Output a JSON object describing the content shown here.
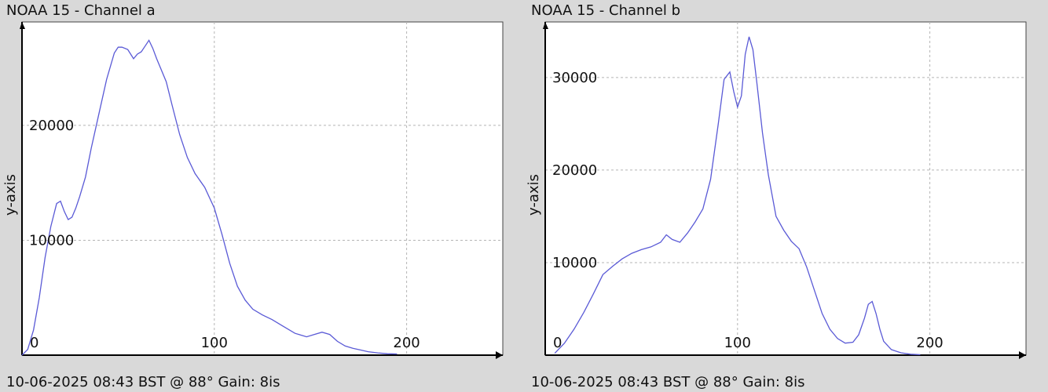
{
  "chart_data": [
    {
      "type": "line",
      "title": "NOAA 15 - Channel a",
      "footer": "10-06-2025 08:43 BST @ 88° Gain: 8is",
      "ylabel": "y-axis",
      "xlabel": "",
      "xlim": [
        0,
        250
      ],
      "ylim": [
        0,
        29000
      ],
      "x_ticks": [
        0,
        100,
        200
      ],
      "y_ticks": [
        10000,
        20000
      ],
      "grid": true,
      "series": [
        {
          "x": [
            0,
            3,
            6,
            9,
            12,
            15,
            18,
            20,
            22,
            24,
            26,
            28,
            30,
            33,
            36,
            40,
            44,
            48,
            50,
            52,
            55,
            58,
            60,
            62,
            64,
            66,
            68,
            70,
            72,
            75,
            78,
            82,
            86,
            90,
            95,
            100,
            104,
            108,
            112,
            116,
            120,
            125,
            130,
            136,
            142,
            148,
            152,
            156,
            160,
            164,
            168,
            172,
            176,
            180,
            185,
            190,
            195
          ],
          "values": [
            0,
            500,
            2200,
            5000,
            8500,
            11200,
            13200,
            13400,
            12500,
            11800,
            12000,
            12800,
            13800,
            15500,
            18000,
            21000,
            24000,
            26300,
            26800,
            26800,
            26600,
            25800,
            26200,
            26400,
            26900,
            27400,
            26700,
            25800,
            25000,
            23800,
            21800,
            19200,
            17200,
            15800,
            14600,
            12800,
            10500,
            8000,
            6000,
            4800,
            4000,
            3500,
            3100,
            2500,
            1900,
            1600,
            1800,
            2000,
            1800,
            1200,
            800,
            600,
            450,
            300,
            200,
            120,
            100
          ]
        }
      ]
    },
    {
      "type": "line",
      "title": "NOAA 15 - Channel b",
      "footer": "10-06-2025 08:43 BST @ 88° Gain: 8is",
      "ylabel": "y-axis",
      "xlabel": "",
      "xlim": [
        0,
        250
      ],
      "ylim": [
        0,
        36000
      ],
      "x_ticks": [
        0,
        100,
        200
      ],
      "y_ticks": [
        10000,
        20000,
        30000
      ],
      "grid": true,
      "series": [
        {
          "x": [
            5,
            10,
            15,
            20,
            25,
            30,
            35,
            40,
            45,
            50,
            55,
            60,
            63,
            66,
            70,
            74,
            78,
            82,
            86,
            90,
            93,
            96,
            98,
            100,
            102,
            104,
            106,
            108,
            110,
            113,
            116,
            120,
            124,
            128,
            132,
            136,
            140,
            144,
            148,
            152,
            156,
            160,
            163,
            166,
            168,
            170,
            172,
            174,
            176,
            180,
            185,
            190,
            195
          ],
          "values": [
            200,
            1300,
            2800,
            4600,
            6600,
            8700,
            9600,
            10400,
            11000,
            11400,
            11700,
            12200,
            13000,
            12500,
            12200,
            13200,
            14400,
            15800,
            19000,
            25000,
            29800,
            30600,
            28500,
            26800,
            28000,
            32500,
            34400,
            33000,
            29500,
            24000,
            19500,
            15000,
            13500,
            12300,
            11500,
            9500,
            7000,
            4500,
            2800,
            1800,
            1300,
            1400,
            2200,
            4000,
            5500,
            5800,
            4500,
            2800,
            1500,
            600,
            250,
            100,
            50
          ]
        }
      ]
    }
  ]
}
